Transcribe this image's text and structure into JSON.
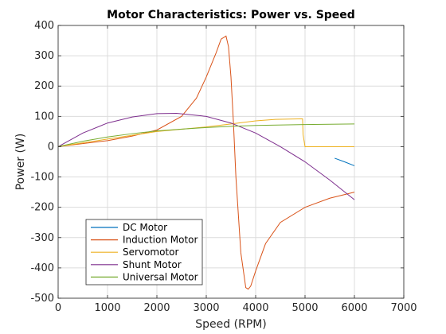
{
  "chart_data": {
    "type": "line",
    "title": "Motor Characteristics: Power vs. Speed",
    "xlabel": "Speed (RPM)",
    "ylabel": "Power (W)",
    "xlim": [
      0,
      7000
    ],
    "ylim": [
      -500,
      400
    ],
    "xticks": [
      0,
      1000,
      2000,
      3000,
      4000,
      5000,
      6000,
      7000
    ],
    "yticks": [
      -500,
      -400,
      -300,
      -200,
      -100,
      0,
      100,
      200,
      300,
      400
    ],
    "grid": true,
    "legend_position": "bottom-left",
    "series": [
      {
        "name": "DC Motor",
        "color": "#0072BD",
        "x": [
          5600,
          5800,
          6000
        ],
        "y": [
          -38,
          -50,
          -63
        ]
      },
      {
        "name": "Induction Motor",
        "color": "#D95319",
        "x": [
          0,
          1000,
          1500,
          2000,
          2500,
          2800,
          3000,
          3200,
          3300,
          3400,
          3450,
          3500,
          3550,
          3600,
          3700,
          3800,
          3850,
          3900,
          4000,
          4200,
          4500,
          5000,
          5500,
          6000
        ],
        "y": [
          0,
          20,
          35,
          55,
          100,
          160,
          230,
          310,
          355,
          365,
          330,
          230,
          80,
          -100,
          -350,
          -465,
          -470,
          -460,
          -410,
          -320,
          -250,
          -200,
          -170,
          -150
        ]
      },
      {
        "name": "Servomotor",
        "color": "#EDB120",
        "x": [
          0,
          1000,
          2000,
          3000,
          3500,
          4000,
          4400,
          4950,
          4960,
          5000,
          6000
        ],
        "y": [
          0,
          25,
          50,
          65,
          75,
          85,
          90,
          92,
          40,
          0,
          0
        ]
      },
      {
        "name": "Shunt Motor",
        "color": "#7E2F8E",
        "x": [
          0,
          500,
          1000,
          1500,
          2000,
          2400,
          3000,
          3500,
          4000,
          4500,
          5000,
          5500,
          6000
        ],
        "y": [
          0,
          45,
          78,
          98,
          109,
          110,
          100,
          78,
          45,
          0,
          -50,
          -110,
          -175
        ]
      },
      {
        "name": "Universal Motor",
        "color": "#77AC30",
        "x": [
          0,
          500,
          1000,
          1500,
          2000,
          2500,
          3000,
          3500,
          4000,
          5000,
          6000
        ],
        "y": [
          0,
          18,
          32,
          43,
          52,
          58,
          63,
          67,
          70,
          73,
          75
        ]
      }
    ]
  }
}
